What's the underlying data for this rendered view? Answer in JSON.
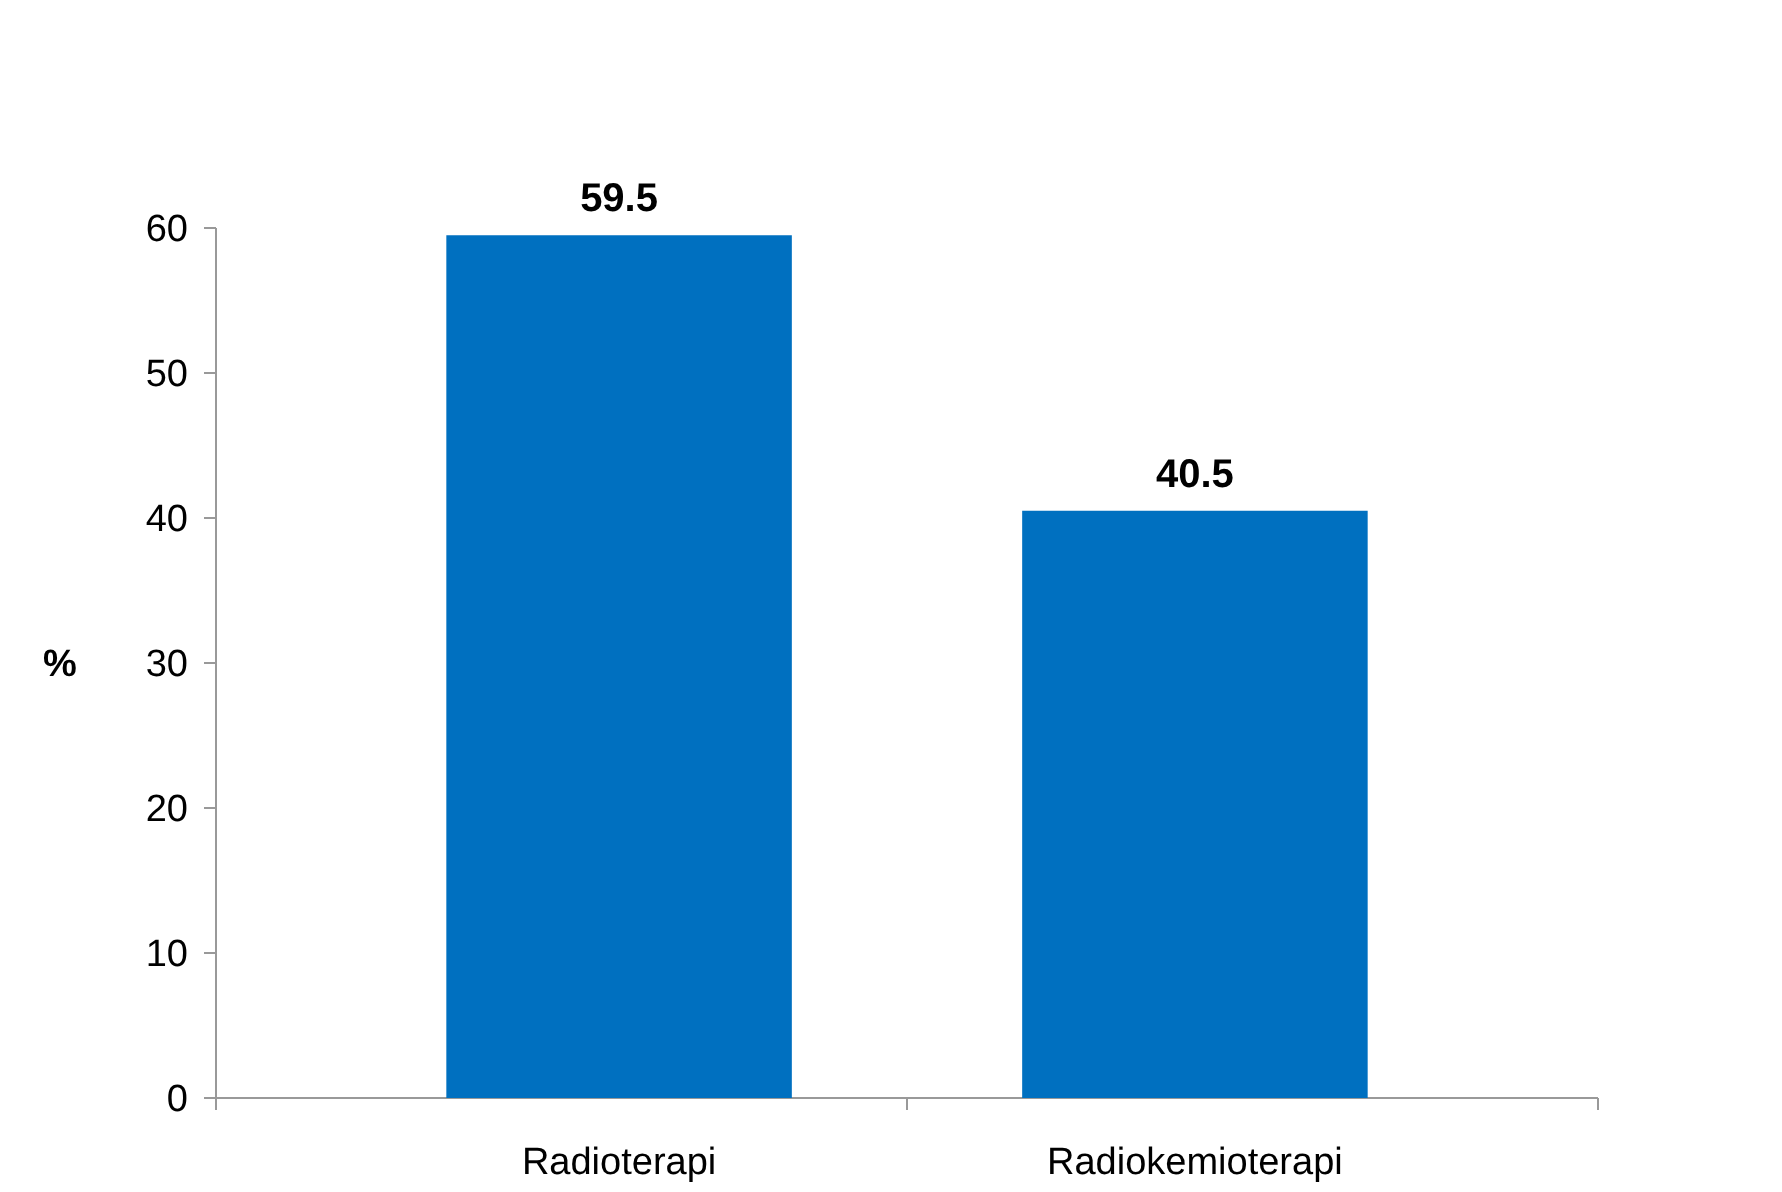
{
  "chart_data": {
    "type": "bar",
    "ylabel": "%",
    "categories": [
      "Radioterapi",
      "Radiokemioterapi"
    ],
    "values": [
      59.5,
      40.5
    ],
    "color": "#0070c0",
    "ylim": [
      0,
      60
    ],
    "yticks": [
      0,
      10,
      20,
      30,
      40,
      50,
      60
    ],
    "data_labels": true,
    "grid": false
  }
}
